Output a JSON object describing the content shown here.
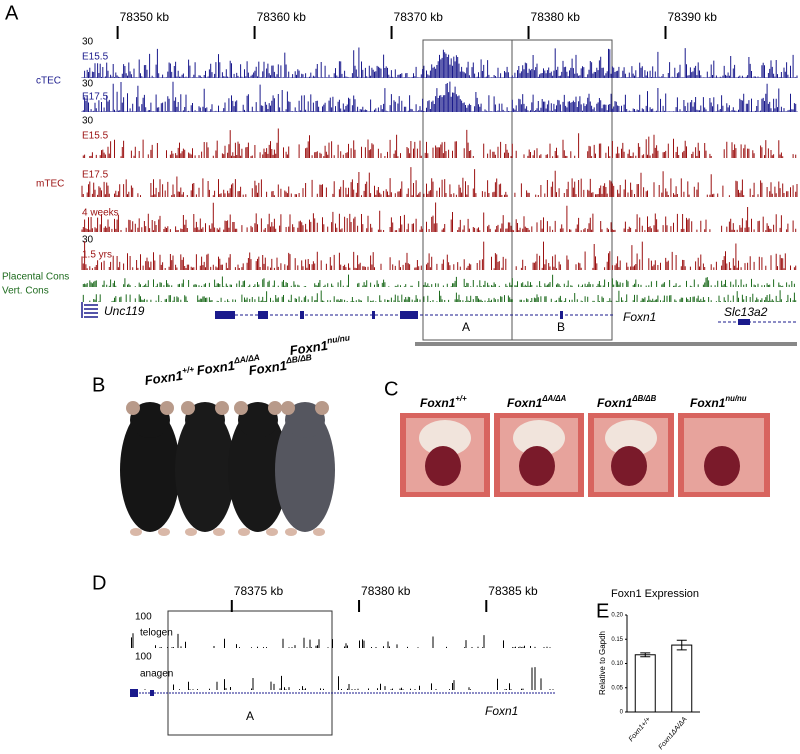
{
  "panel_a": {
    "label": "A",
    "xlim": [
      78347.4,
      78399.6
    ],
    "xticks": [
      {
        "value": 78350,
        "label": "78350 kb"
      },
      {
        "value": 78360,
        "label": "78360 kb"
      },
      {
        "value": 78370,
        "label": "78370 kb"
      },
      {
        "value": 78380,
        "label": "78380 kb"
      },
      {
        "value": 78390,
        "label": "78390 kb"
      }
    ],
    "groups": [
      "cTEC",
      "mTEC"
    ],
    "tracks": [
      {
        "scale": "30",
        "name": "E15.5",
        "color": "#1a1a8c"
      },
      {
        "scale": "30",
        "name": "E17.5",
        "color": "#1a1a8c"
      },
      {
        "scale": "30",
        "name": "E15.5",
        "color": "#9b1111"
      },
      {
        "name": "E17.5",
        "color": "#9b1111"
      },
      {
        "name": "4 weeks",
        "color": "#9b1111"
      },
      {
        "scale": "30",
        "name": "1.5 yrs",
        "color": "#9b1111"
      }
    ],
    "conservation": [
      {
        "name": "Placental Cons",
        "color": "#1e6b1e"
      },
      {
        "name": "Vert. Cons",
        "color": "#1e6b1e"
      }
    ],
    "genes": [
      "Unc119",
      "Foxn1",
      "Slc13a2"
    ],
    "boxes": [
      "A",
      "B"
    ]
  },
  "panel_b": {
    "label": "B",
    "genotypes": [
      {
        "gene": "Foxn1",
        "allele": "+/+"
      },
      {
        "gene": "Foxn1",
        "allele": "ΔA/ΔA"
      },
      {
        "gene": "Foxn1",
        "allele": "ΔB/ΔB"
      },
      {
        "gene": "Foxn1",
        "allele": "nu/nu"
      }
    ]
  },
  "panel_c": {
    "label": "C",
    "genotypes": [
      {
        "gene": "Foxn1",
        "allele": "+/+"
      },
      {
        "gene": "Foxn1",
        "allele": "ΔA/ΔA"
      },
      {
        "gene": "Foxn1",
        "allele": "ΔB/ΔB"
      },
      {
        "gene": "Foxn1",
        "allele": "nu/nu"
      }
    ]
  },
  "panel_d": {
    "label": "D",
    "xlim": [
      78371,
      78387.7
    ],
    "xticks": [
      {
        "value": 78375,
        "label": "78375 kb"
      },
      {
        "value": 78380,
        "label": "78380 kb"
      },
      {
        "value": 78385,
        "label": "78385 kb"
      }
    ],
    "tracks": [
      {
        "scale": "100",
        "name": "telogen"
      },
      {
        "scale": "100",
        "name": "anagen"
      }
    ],
    "gene": "Foxn1",
    "box": "A"
  },
  "chart_data": {
    "type": "bar",
    "label": "E",
    "title": "Foxn1 Expression",
    "ylabel": "Relative to Gapdh",
    "categories": [
      "Foxn1+/+",
      "Foxn1ΔA/ΔA"
    ],
    "values": [
      0.118,
      0.138
    ],
    "errors": [
      0.004,
      0.01
    ],
    "color": "#ffffff",
    "ylim": [
      0,
      0.2
    ],
    "yticks": [
      0,
      0.05,
      {
        "value": 0.1,
        "label": "0.10"
      },
      0.15,
      {
        "value": 0.2,
        "label": "0.20"
      }
    ]
  }
}
